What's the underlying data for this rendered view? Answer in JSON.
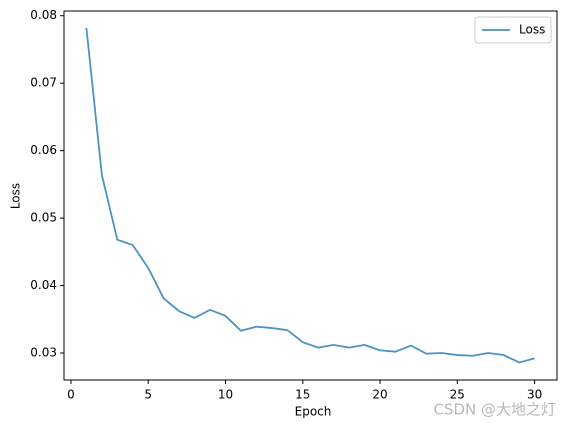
{
  "chart_data": {
    "type": "line",
    "x": [
      1,
      2,
      3,
      4,
      5,
      6,
      7,
      8,
      9,
      10,
      11,
      12,
      13,
      14,
      15,
      16,
      17,
      18,
      19,
      20,
      21,
      22,
      23,
      24,
      25,
      26,
      27,
      28,
      29,
      30
    ],
    "series": [
      {
        "name": "Loss",
        "color": "#4b93c3",
        "values": [
          0.0782,
          0.0564,
          0.0468,
          0.046,
          0.0426,
          0.0381,
          0.0362,
          0.0352,
          0.0364,
          0.0355,
          0.0333,
          0.0339,
          0.0337,
          0.0334,
          0.0316,
          0.0308,
          0.0312,
          0.0308,
          0.0312,
          0.0304,
          0.0302,
          0.0311,
          0.0299,
          0.03,
          0.0297,
          0.0296,
          0.03,
          0.0297,
          0.0286,
          0.0292
        ]
      }
    ],
    "xlabel": "Epoch",
    "ylabel": "Loss",
    "xlim": [
      -0.45,
      31.45
    ],
    "ylim": [
      0.026,
      0.0807
    ],
    "xticks": [
      0,
      5,
      10,
      15,
      20,
      25,
      30
    ],
    "yticks": [
      0.03,
      0.04,
      0.05,
      0.06,
      0.07,
      0.08
    ],
    "legend": "upper right"
  },
  "watermark": "CSDN @大地之灯"
}
